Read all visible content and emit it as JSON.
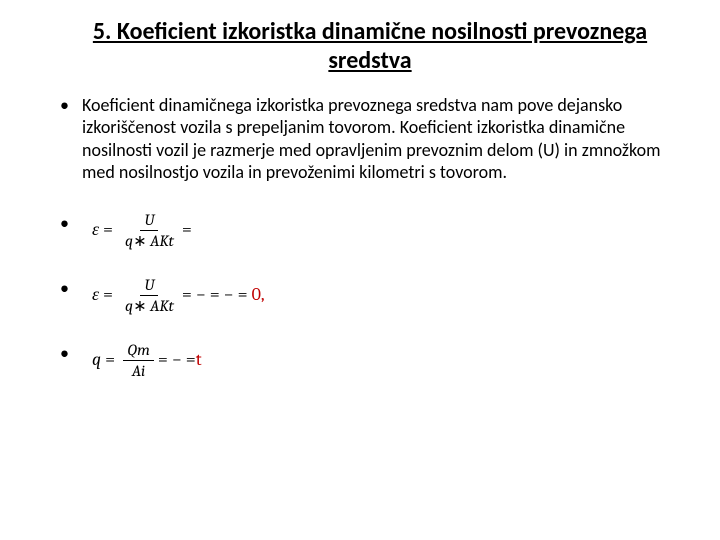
{
  "title": "5. Koeficient izkoristka dinamične nosilnosti prevoznega sredstva",
  "paragraph": "Koeficient dinamičnega izkoristka prevoznega sredstva nam pove dejansko izkoriščenost vozila s prepeljanim tovorom. Koeficient izkoristka dinamične nosilnosti vozil je razmerje med opravljenim prevoznim delom (U) in zmnožkom med nosilnostjo vozila in prevoženimi kilometri s tovorom.",
  "eq1": {
    "lhs": "ε",
    "num": "U",
    "den_a": "q",
    "den_op": "∗",
    "den_b": "AKt",
    "tail": "="
  },
  "eq2": {
    "lhs": "ε",
    "num": "U",
    "den_a": "q",
    "den_op": "∗",
    "den_b": "AKt",
    "tail_a": "= − = − =",
    "tail_red": "0,"
  },
  "eq3": {
    "lhs": "q",
    "num": "Qm",
    "den": "Ai",
    "tail_a": "= − =",
    "tail_red": "t"
  },
  "colors": {
    "text": "#000000",
    "red": "#c00000",
    "background": "#ffffff"
  }
}
